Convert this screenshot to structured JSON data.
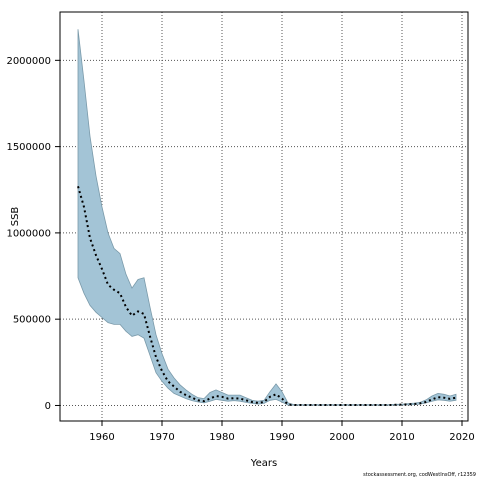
{
  "chart_data": {
    "type": "area",
    "xlabel": "Years",
    "ylabel": "SSB",
    "xlim": [
      1953,
      2021
    ],
    "ylim": [
      -90000,
      2280000
    ],
    "x_ticks": [
      1960,
      1970,
      1980,
      1990,
      2000,
      2010,
      2020
    ],
    "y_ticks": [
      0,
      500000,
      1000000,
      1500000,
      2000000
    ],
    "y_tick_labels": [
      "0",
      "500000",
      "1000000",
      "1500000",
      "2000000"
    ],
    "grid": true,
    "x": [
      1956,
      1957,
      1958,
      1959,
      1960,
      1961,
      1962,
      1963,
      1964,
      1965,
      1966,
      1967,
      1968,
      1969,
      1970,
      1971,
      1972,
      1973,
      1974,
      1975,
      1976,
      1977,
      1978,
      1979,
      1980,
      1981,
      1982,
      1983,
      1984,
      1985,
      1986,
      1987,
      1988,
      1989,
      1990,
      1991,
      1992,
      1993,
      1994,
      1995,
      1996,
      1997,
      1998,
      1999,
      2000,
      2001,
      2002,
      2003,
      2004,
      2005,
      2006,
      2007,
      2008,
      2009,
      2010,
      2011,
      2012,
      2013,
      2014,
      2015,
      2016,
      2017,
      2018,
      2019
    ],
    "series": [
      {
        "values": [
          1270000,
          1150000,
          970000,
          870000,
          790000,
          700000,
          670000,
          650000,
          570000,
          520000,
          545000,
          530000,
          400000,
          280000,
          200000,
          140000,
          110000,
          80000,
          60000,
          45000,
          30000,
          25000,
          40000,
          55000,
          50000,
          40000,
          42000,
          40000,
          30000,
          20000,
          15000,
          20000,
          50000,
          65000,
          40000,
          5000,
          3000,
          3000,
          3000,
          3000,
          3000,
          3000,
          3000,
          3000,
          3000,
          3000,
          3000,
          3000,
          3000,
          3000,
          3000,
          3000,
          3000,
          4000,
          5000,
          7000,
          8000,
          12000,
          20000,
          35000,
          48000,
          45000,
          38000,
          45000
        ],
        "lower": [
          740000,
          650000,
          580000,
          540000,
          510000,
          480000,
          470000,
          470000,
          430000,
          400000,
          410000,
          390000,
          290000,
          190000,
          140000,
          100000,
          70000,
          55000,
          40000,
          28000,
          20000,
          15000,
          25000,
          35000,
          30000,
          25000,
          28000,
          25000,
          18000,
          12000,
          8000,
          12000,
          30000,
          35000,
          20000,
          2000,
          1500,
          1500,
          1500,
          1500,
          1500,
          1500,
          1500,
          1500,
          1500,
          1500,
          1500,
          1500,
          1500,
          1500,
          1500,
          1500,
          1500,
          2000,
          2500,
          4000,
          5000,
          8000,
          15000,
          25000,
          33000,
          30000,
          25000,
          30000
        ],
        "upper": [
          2180000,
          1880000,
          1560000,
          1330000,
          1150000,
          1000000,
          910000,
          880000,
          760000,
          680000,
          730000,
          740000,
          570000,
          410000,
          300000,
          210000,
          160000,
          120000,
          90000,
          65000,
          45000,
          40000,
          75000,
          90000,
          75000,
          60000,
          60000,
          60000,
          45000,
          30000,
          25000,
          30000,
          80000,
          125000,
          80000,
          15000,
          5000,
          5000,
          5000,
          5000,
          5000,
          5000,
          5000,
          5000,
          5000,
          5000,
          5000,
          5000,
          5000,
          5000,
          5000,
          5000,
          5000,
          7000,
          8000,
          11000,
          13000,
          18000,
          32000,
          55000,
          70000,
          65000,
          55000,
          65000
        ]
      }
    ],
    "colors": {
      "band_fill": "#a3c4d6",
      "band_stroke": "#7a9aaa",
      "line": "#000000",
      "grid": "#555555"
    }
  },
  "credit": "stockassessment.org, codWestInsOff, r12359"
}
